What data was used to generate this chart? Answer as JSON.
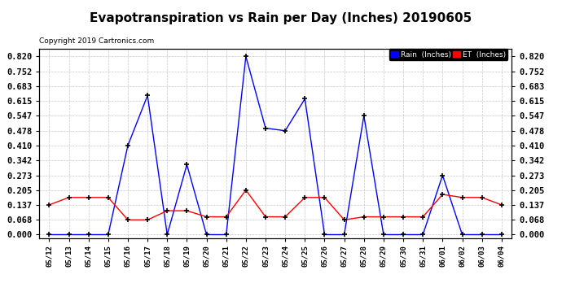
{
  "title": "Evapotranspiration vs Rain per Day (Inches) 20190605",
  "copyright": "Copyright 2019 Cartronics.com",
  "dates": [
    "05/12",
    "05/13",
    "05/14",
    "05/15",
    "05/16",
    "05/17",
    "05/18",
    "05/19",
    "05/20",
    "05/21",
    "05/22",
    "05/23",
    "05/24",
    "05/25",
    "05/26",
    "05/27",
    "05/28",
    "05/29",
    "05/30",
    "05/31",
    "06/01",
    "06/02",
    "06/03",
    "06/04"
  ],
  "rain_blue": [
    0.0,
    0.0,
    0.0,
    0.0,
    0.41,
    0.64,
    0.0,
    0.322,
    0.0,
    0.0,
    0.82,
    0.49,
    0.478,
    0.625,
    0.0,
    0.0,
    0.547,
    0.0,
    0.0,
    0.0,
    0.273,
    0.0,
    0.0,
    0.0
  ],
  "et_red": [
    0.137,
    0.171,
    0.171,
    0.171,
    0.068,
    0.068,
    0.11,
    0.11,
    0.082,
    0.082,
    0.205,
    0.082,
    0.082,
    0.171,
    0.171,
    0.068,
    0.082,
    0.082,
    0.082,
    0.082,
    0.185,
    0.171,
    0.171,
    0.137
  ],
  "yticks": [
    0.0,
    0.068,
    0.137,
    0.205,
    0.273,
    0.342,
    0.41,
    0.478,
    0.547,
    0.615,
    0.683,
    0.752,
    0.82
  ],
  "rain_color": "#0000ff",
  "et_color": "#ff0000",
  "background_color": "#ffffff",
  "grid_color": "#c8c8c8",
  "title_fontsize": 11,
  "ymax": 0.855,
  "ymin": -0.015
}
